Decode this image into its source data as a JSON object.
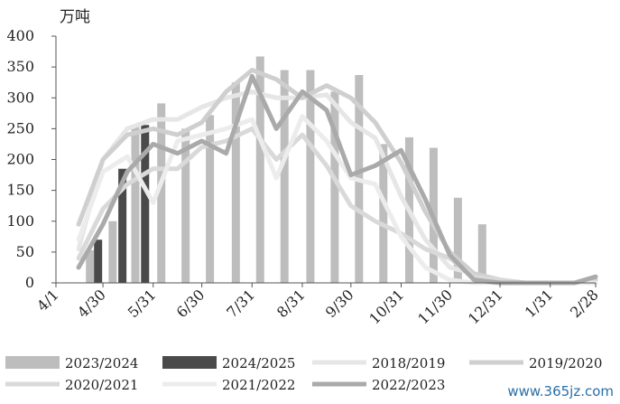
{
  "chart_data": {
    "type": "bar+line",
    "title": "",
    "unit": "万吨",
    "ylim": [
      0,
      400
    ],
    "yticks": [
      0,
      50,
      100,
      150,
      200,
      250,
      300,
      350,
      400
    ],
    "xticks": [
      "4/1",
      "4/30",
      "5/31",
      "6/30",
      "7/31",
      "8/31",
      "9/30",
      "10/31",
      "11/30",
      "12/31",
      "1/31",
      "2/28"
    ],
    "x_positions": [
      "4/1",
      "4/15",
      "4/30",
      "5/15",
      "5/31",
      "6/15",
      "6/30",
      "7/15",
      "7/31",
      "8/15",
      "8/31",
      "9/15",
      "9/30",
      "10/15",
      "10/31",
      "11/15",
      "11/30",
      "12/15",
      "12/31",
      "1/15",
      "1/31",
      "2/15",
      "2/28"
    ],
    "bar_series": [
      {
        "name": "2023/2024",
        "color": "#bdbdbd",
        "points": [
          [
            "4/22",
            53
          ],
          [
            "5/6",
            100
          ],
          [
            "5/20",
            253
          ],
          [
            "6/5",
            291
          ],
          [
            "6/20",
            250
          ],
          [
            "7/5",
            272
          ],
          [
            "7/21",
            325
          ],
          [
            "8/5",
            367
          ],
          [
            "8/20",
            345
          ],
          [
            "9/5",
            345
          ],
          [
            "9/20",
            310
          ],
          [
            "10/5",
            337
          ],
          [
            "10/20",
            225
          ],
          [
            "11/5",
            236
          ],
          [
            "11/20",
            219
          ],
          [
            "12/5",
            138
          ],
          [
            "12/20",
            95
          ]
        ]
      },
      {
        "name": "2024/2025",
        "color": "#4a4a4a",
        "points": [
          [
            "4/27",
            70
          ],
          [
            "5/12",
            185
          ],
          [
            "5/26",
            256
          ]
        ]
      }
    ],
    "line_series": [
      {
        "name": "2018/2019",
        "color": "#e6e6e6",
        "values": [
          null,
          55,
          200,
          250,
          265,
          265,
          285,
          300,
          310,
          300,
          300,
          305,
          260,
          235,
          140,
          70,
          25,
          15,
          5,
          0,
          0,
          0,
          0
        ]
      },
      {
        "name": "2019/2020",
        "color": "#cfcfcf",
        "values": [
          null,
          95,
          200,
          240,
          250,
          240,
          260,
          310,
          345,
          330,
          300,
          320,
          300,
          260,
          195,
          115,
          50,
          15,
          5,
          0,
          0,
          0,
          5
        ]
      },
      {
        "name": "2020/2021",
        "color": "#d9d9d9",
        "values": [
          null,
          40,
          120,
          160,
          185,
          185,
          220,
          230,
          250,
          200,
          240,
          190,
          125,
          100,
          80,
          55,
          40,
          10,
          5,
          0,
          0,
          0,
          0
        ]
      },
      {
        "name": "2021/2022",
        "color": "#ececec",
        "values": [
          null,
          70,
          180,
          205,
          130,
          230,
          240,
          250,
          265,
          170,
          270,
          230,
          170,
          160,
          75,
          25,
          5,
          0,
          0,
          0,
          0,
          0,
          0
        ]
      },
      {
        "name": "2022/2023",
        "color": "#aaaaaa",
        "values": [
          null,
          25,
          95,
          180,
          225,
          210,
          230,
          210,
          335,
          250,
          310,
          280,
          175,
          190,
          215,
          135,
          45,
          5,
          0,
          0,
          0,
          0,
          10
        ]
      }
    ],
    "legend": {
      "placement": "bottom",
      "entries": [
        {
          "name": "2023/2024",
          "kind": "bar",
          "color": "#bdbdbd"
        },
        {
          "name": "2024/2025",
          "kind": "bar",
          "color": "#4a4a4a"
        },
        {
          "name": "2018/2019",
          "kind": "line",
          "color": "#e6e6e6"
        },
        {
          "name": "2019/2020",
          "kind": "line",
          "color": "#cfcfcf"
        },
        {
          "name": "2020/2021",
          "kind": "line",
          "color": "#d9d9d9"
        },
        {
          "name": "2021/2022",
          "kind": "line",
          "color": "#ececec"
        },
        {
          "name": "2022/2023",
          "kind": "line",
          "color": "#aaaaaa"
        }
      ]
    },
    "grid": false
  },
  "watermark": "www.365jz.com"
}
